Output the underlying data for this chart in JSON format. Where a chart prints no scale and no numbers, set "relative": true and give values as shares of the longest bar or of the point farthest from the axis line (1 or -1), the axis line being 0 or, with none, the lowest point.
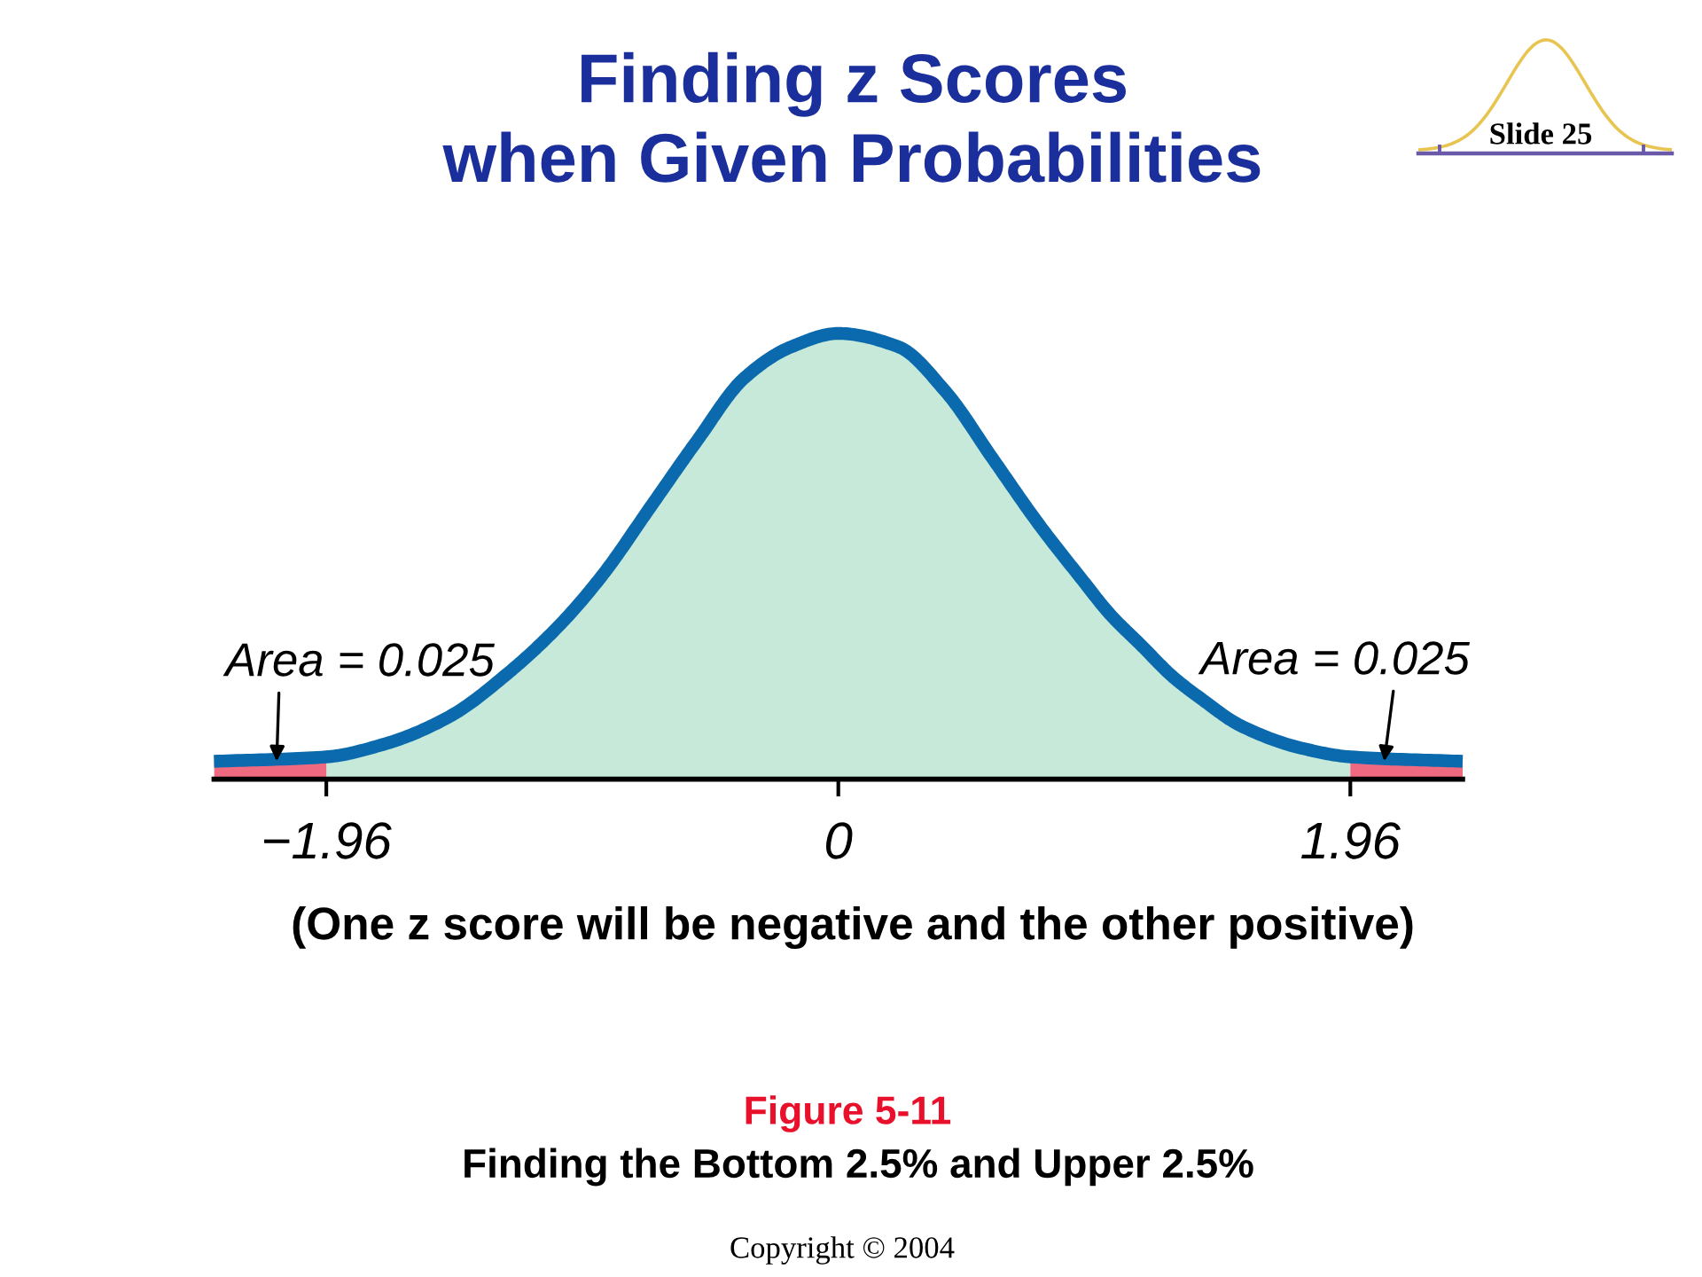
{
  "chart_data": {
    "type": "area",
    "title": "Finding z Scores\nwhen Given Probabilities",
    "relative": true,
    "xlim": [
      -2.39,
      2.39
    ],
    "xticks": [
      {
        "value": -1.96,
        "label": "−1.96"
      },
      0,
      1.96
    ],
    "series": [
      {
        "color": "#c6e9d9",
        "x": [
          -1.96,
          -1.73,
          -1.49,
          -1.26,
          -1.06,
          -0.9,
          -0.72,
          -0.54,
          -0.36,
          -0.18,
          0,
          0.23,
          0.41,
          0.59,
          0.77,
          0.93,
          1.04,
          1.16,
          1.28,
          1.39,
          1.54,
          1.77,
          1.96
        ],
        "values": [
          0.05,
          0.08,
          0.14,
          0.24,
          0.35,
          0.46,
          0.61,
          0.76,
          0.9,
          0.97,
          1,
          0.97,
          0.87,
          0.72,
          0.57,
          0.45,
          0.37,
          0.3,
          0.23,
          0.18,
          0.12,
          0.07,
          0.05
        ]
      },
      {
        "color": "#ef6a80",
        "x": [
          -2.39,
          -1.96
        ],
        "values": [
          0.04,
          0.05
        ]
      },
      {
        "color": "#ef6a80",
        "x": [
          1.96,
          2.39
        ],
        "values": [
          0.05,
          0.04
        ]
      },
      {
        "type": "line",
        "color": "#0a6aad",
        "x": [
          -2.39,
          -1.96,
          -1.73,
          -1.49,
          -1.26,
          -1.06,
          -0.9,
          -0.72,
          -0.54,
          -0.36,
          -0.18,
          0,
          0.23,
          0.41,
          0.59,
          0.77,
          0.93,
          1.04,
          1.16,
          1.28,
          1.39,
          1.54,
          1.77,
          1.96,
          2.39
        ],
        "values": [
          0.04,
          0.05,
          0.08,
          0.14,
          0.24,
          0.35,
          0.46,
          0.61,
          0.76,
          0.9,
          0.97,
          1,
          0.97,
          0.87,
          0.72,
          0.57,
          0.45,
          0.37,
          0.3,
          0.23,
          0.18,
          0.12,
          0.07,
          0.05,
          0.04
        ]
      }
    ],
    "annotations": [
      {
        "text": "Area = 0.025",
        "x": -2.15,
        "y": 0.04
      },
      {
        "text": "Area = 0.025",
        "x": 2.09,
        "y": 0.04
      },
      "(One z score will be negative and the other positive)",
      "Figure 5-11",
      "Finding the Bottom 2.5% and Upper 2.5%",
      "Copyright © 2004",
      "Slide 25"
    ]
  }
}
